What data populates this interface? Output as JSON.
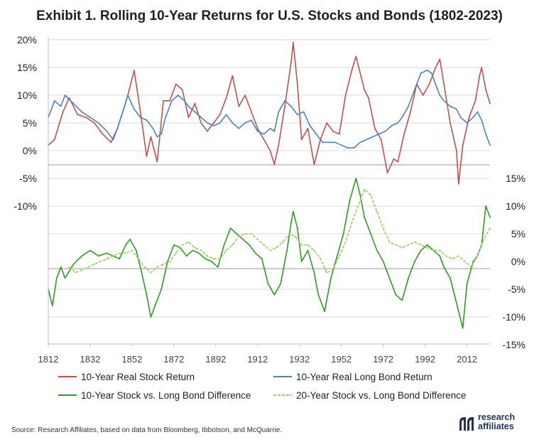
{
  "title": "Exhibit 1. Rolling 10-Year Returns for U.S. Stocks and Bonds (1802-2023)",
  "source": "Source: Research Affiliates, based on data from Bloomberg, Ibbotson, and McQuarrie.",
  "logo": {
    "line1": "research",
    "line2": "affiliates"
  },
  "colors": {
    "stock": "#c0504d",
    "bond": "#4f81bd",
    "diff10": "#2e9b23",
    "diff20": "#9acd5a",
    "grid": "#d9d9d9",
    "zero": "#9a9a9a",
    "logo": "#1e3557"
  },
  "chart_data": {
    "type": "line",
    "title": "Exhibit 1. Rolling 10-Year Returns for U.S. Stocks and Bonds (1802-2023)",
    "xlabel": "",
    "ylabel": "",
    "x_ticks": [
      "1812",
      "1832",
      "1852",
      "1872",
      "1892",
      "1912",
      "1932",
      "1952",
      "1972",
      "1992",
      "2012"
    ],
    "x_range": [
      1812,
      2023
    ],
    "left_axis": {
      "ticks": [
        "20%",
        "15%",
        "10%",
        "5%",
        "0%",
        "-5%",
        "-10%"
      ],
      "range": [
        -10,
        20
      ],
      "unit": "%"
    },
    "right_axis": {
      "ticks": [
        "15%",
        "10%",
        "5%",
        "0%",
        "-5%",
        "-10%",
        "-15%"
      ],
      "range": [
        -15,
        15
      ],
      "unit": "%"
    },
    "series": [
      {
        "name": "10-Year Real Stock Return",
        "axis": "left",
        "style": "solid",
        "x": [
          1812,
          1815,
          1819,
          1822,
          1826,
          1830,
          1834,
          1838,
          1842,
          1845,
          1848,
          1850,
          1853,
          1856,
          1859,
          1861,
          1864,
          1867,
          1870,
          1873,
          1876,
          1879,
          1882,
          1885,
          1888,
          1891,
          1894,
          1897,
          1900,
          1903,
          1906,
          1909,
          1912,
          1915,
          1918,
          1920,
          1922,
          1925,
          1928,
          1929,
          1931,
          1933,
          1936,
          1939,
          1942,
          1945,
          1948,
          1951,
          1954,
          1957,
          1959,
          1961,
          1963,
          1965,
          1968,
          1971,
          1974,
          1977,
          1979,
          1982,
          1985,
          1988,
          1991,
          1994,
          1997,
          1999,
          2001,
          2004,
          2007,
          2008,
          2010,
          2013,
          2016,
          2018,
          2019,
          2021,
          2023
        ],
        "values": [
          1,
          2,
          7,
          9.5,
          6.5,
          6,
          5,
          3,
          1.5,
          4,
          7.5,
          10,
          14.5,
          7,
          -1,
          2.5,
          -2,
          9,
          9,
          12,
          11,
          6,
          8.5,
          5,
          3.5,
          5,
          6.5,
          9.5,
          13.5,
          8,
          10,
          7,
          4,
          2,
          0,
          -2.5,
          1,
          8,
          16,
          19.5,
          12,
          2,
          4,
          -2.5,
          2,
          5,
          3.5,
          3,
          10,
          14.5,
          17,
          14,
          11,
          9.5,
          4,
          2,
          -4,
          -1.5,
          -2,
          3,
          7,
          12,
          10,
          12,
          15,
          16.5,
          12,
          5,
          0,
          -6,
          1,
          6,
          9,
          13.5,
          15,
          11,
          8.5
        ]
      },
      {
        "name": "10-Year Real Long Bond Return",
        "axis": "left",
        "style": "solid",
        "x": [
          1812,
          1815,
          1818,
          1820,
          1824,
          1828,
          1832,
          1836,
          1840,
          1843,
          1845,
          1848,
          1850,
          1853,
          1856,
          1859,
          1862,
          1864,
          1866,
          1868,
          1871,
          1874,
          1877,
          1879,
          1882,
          1885,
          1888,
          1891,
          1894,
          1897,
          1900,
          1903,
          1906,
          1909,
          1912,
          1915,
          1918,
          1920,
          1922,
          1925,
          1928,
          1931,
          1934,
          1937,
          1940,
          1943,
          1946,
          1949,
          1952,
          1955,
          1958,
          1961,
          1964,
          1967,
          1970,
          1973,
          1976,
          1979,
          1981,
          1984,
          1987,
          1990,
          1993,
          1995,
          1997,
          1999,
          2001,
          2004,
          2007,
          2009,
          2012,
          2015,
          2017,
          2019,
          2021,
          2023
        ],
        "values": [
          6,
          9,
          8,
          10,
          8.5,
          7,
          6,
          5,
          3.5,
          2,
          4,
          7.5,
          10,
          7.5,
          6,
          5.5,
          4,
          2.5,
          3,
          6,
          9,
          10,
          9,
          8,
          7,
          6,
          5,
          4.5,
          5,
          6.5,
          5,
          4,
          5,
          5.5,
          3.5,
          3,
          4,
          3.5,
          7,
          9,
          8,
          6.5,
          7,
          4.5,
          3,
          1.5,
          1.5,
          1.5,
          1,
          0.5,
          0.5,
          1.5,
          2,
          2.5,
          3,
          3.5,
          4.5,
          5,
          6,
          8,
          11,
          14,
          14.5,
          14,
          12,
          10,
          9,
          8,
          7.5,
          6,
          5,
          6,
          7,
          5.5,
          3,
          1
        ]
      },
      {
        "name": "10-Year Stock vs. Long Bond Difference",
        "axis": "right",
        "style": "solid",
        "x": [
          1812,
          1814,
          1816,
          1818,
          1820,
          1824,
          1828,
          1832,
          1836,
          1840,
          1843,
          1846,
          1849,
          1851,
          1854,
          1856,
          1859,
          1861,
          1863,
          1866,
          1869,
          1872,
          1875,
          1878,
          1881,
          1884,
          1887,
          1890,
          1893,
          1896,
          1899,
          1902,
          1905,
          1908,
          1911,
          1914,
          1917,
          1920,
          1923,
          1926,
          1928,
          1929,
          1931,
          1933,
          1936,
          1939,
          1941,
          1944,
          1947,
          1950,
          1953,
          1956,
          1959,
          1961,
          1963,
          1966,
          1969,
          1972,
          1975,
          1978,
          1981,
          1984,
          1987,
          1990,
          1993,
          1996,
          1999,
          2001,
          2004,
          2006,
          2008,
          2010,
          2012,
          2015,
          2017,
          2019,
          2021,
          2023
        ],
        "values": [
          -5,
          -8,
          -3,
          -1,
          -3,
          -0.5,
          1,
          2,
          1,
          1.5,
          1,
          0.5,
          3,
          4,
          2,
          -1,
          -6,
          -10,
          -8,
          -5,
          0,
          3,
          2.5,
          1,
          2,
          1.5,
          0.5,
          0,
          -1,
          3,
          6,
          5,
          4,
          3,
          1.5,
          0.5,
          -4,
          -6,
          -4,
          2,
          7,
          9,
          6,
          0,
          2,
          -2,
          -6,
          -9,
          -3,
          1,
          5,
          11,
          15,
          12,
          8,
          5,
          2,
          0,
          -3,
          -6,
          -7,
          -3,
          0,
          2,
          3,
          2,
          1,
          -1,
          -3,
          -6,
          -9,
          -12,
          -4,
          0,
          1,
          3,
          10,
          8
        ]
      },
      {
        "name": "20-Year Stock vs. Long Bond Difference",
        "axis": "right",
        "style": "dashed",
        "x": [
          1822,
          1825,
          1828,
          1831,
          1834,
          1837,
          1840,
          1843,
          1846,
          1849,
          1852,
          1855,
          1858,
          1861,
          1864,
          1867,
          1870,
          1873,
          1876,
          1879,
          1882,
          1885,
          1888,
          1891,
          1894,
          1897,
          1900,
          1903,
          1906,
          1909,
          1912,
          1915,
          1918,
          1921,
          1924,
          1927,
          1930,
          1933,
          1936,
          1939,
          1942,
          1945,
          1948,
          1951,
          1954,
          1957,
          1960,
          1963,
          1966,
          1969,
          1972,
          1975,
          1978,
          1981,
          1984,
          1987,
          1990,
          1993,
          1996,
          1999,
          2002,
          2005,
          2008,
          2011,
          2014,
          2017,
          2020,
          2023
        ],
        "values": [
          -1,
          -2,
          -1.5,
          -1,
          -0.5,
          0,
          0.5,
          1,
          1.5,
          1.5,
          2,
          0.5,
          -1,
          -2,
          -1,
          -0.5,
          0,
          1.5,
          3,
          3.5,
          2.5,
          2,
          1,
          0.5,
          0.5,
          2,
          3,
          4.5,
          5,
          5,
          4,
          3,
          2,
          2.5,
          3.5,
          5,
          4.5,
          3,
          3,
          2,
          0.5,
          -2,
          -1.5,
          1,
          3.5,
          7,
          10,
          13,
          12,
          9,
          6,
          3.5,
          3,
          2.5,
          3,
          3.5,
          3,
          2.5,
          2,
          2,
          1,
          0.5,
          1,
          0,
          -1,
          1,
          4,
          6
        ]
      }
    ],
    "legend": {
      "position": "bottom",
      "entries": [
        "10-Year Real Stock Return",
        "10-Year Real Long Bond Return",
        "10-Year Stock vs. Long Bond Difference",
        "20-Year Stock vs. Long Bond Difference"
      ]
    },
    "grid": true
  }
}
